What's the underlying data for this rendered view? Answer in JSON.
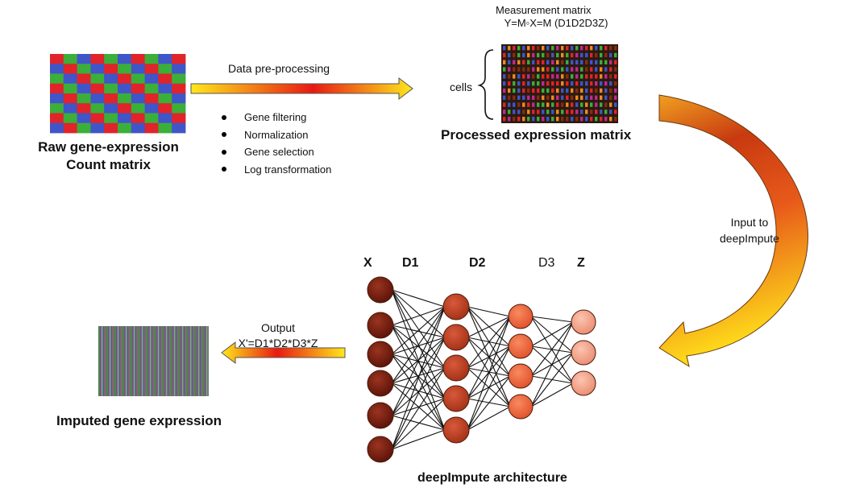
{
  "raw": {
    "title_line1": "Raw gene-expression",
    "title_line2": "Count matrix"
  },
  "preprocess": {
    "label": "Data pre-processing",
    "steps": [
      "Gene filtering",
      "Normalization",
      "Gene selection",
      "Log transformation"
    ]
  },
  "measurement": {
    "line1": "Measurement matrix",
    "line2": "Y=M◦X=M (D1D2D3Z)"
  },
  "processed": {
    "cells_label": "cells",
    "title": "Processed expression matrix"
  },
  "input": {
    "line1": "Input to",
    "line2": "deepImpute"
  },
  "layers": {
    "x": "X",
    "d1": "D1",
    "d2": "D2",
    "d3": "D3",
    "z": "Z"
  },
  "architecture": {
    "title": "deepImpute architecture"
  },
  "output": {
    "line1": "Output",
    "line2": "X'=D1*D2*D3*Z"
  },
  "imputed": {
    "title": "Imputed gene expression"
  },
  "colors": {
    "grid_red": "#e0242a",
    "grid_green": "#3cae3a",
    "grid_blue": "#3f55c8",
    "arrow_yellow": "#ffe81a",
    "arrow_red": "#e81a12",
    "node_x": "#6b1a10",
    "node_d1": "#8a2818",
    "node_d2": "#b23a1c",
    "node_d3": "#e0502a",
    "node_z": "#f0a088"
  }
}
